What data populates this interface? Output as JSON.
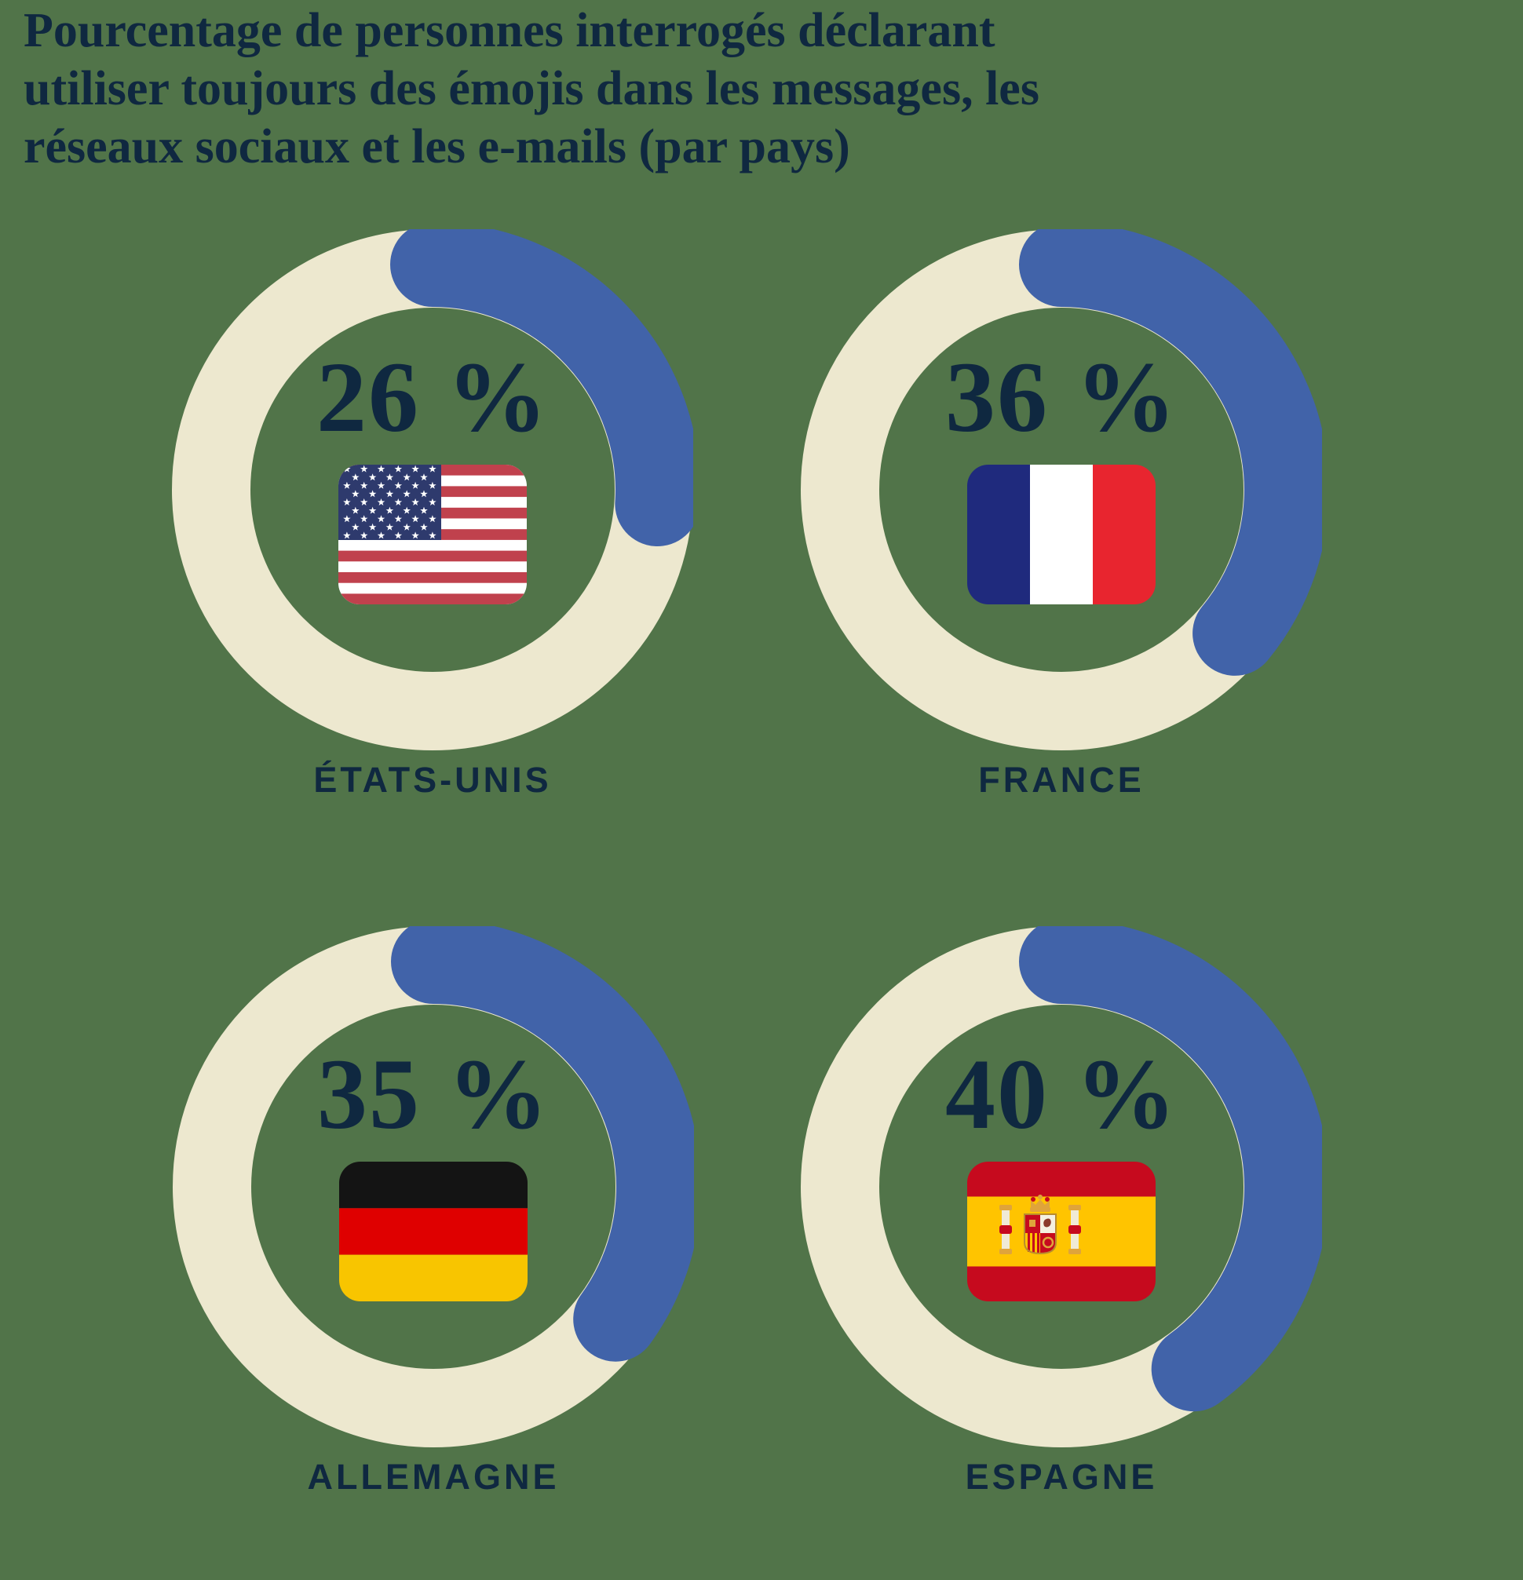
{
  "title": {
    "full": "Pourcentage de personnes interrogés déclarant utiliser toujours des émojis dans les messages, les réseaux sociaux et les e-mails (par pays)",
    "lines": [
      "Pourcentage de personnes interrogés déclarant",
      "utiliser toujours des émojis dans les messages, les",
      "réseaux sociaux et les e-mails (par pays)"
    ]
  },
  "chart_data": {
    "type": "donut-multiples",
    "layout": "2x2-grid",
    "unit": "%",
    "value_range": [
      0,
      100
    ],
    "arc_start": "12-o'clock, clockwise",
    "series": [
      {
        "country": "États-Unis",
        "label": "ÉTATS-UNIS",
        "value": 26,
        "value_label": "26 %",
        "flag": "us-flag"
      },
      {
        "country": "France",
        "label": "FRANCE",
        "value": 36,
        "value_label": "36 %",
        "flag": "france-flag"
      },
      {
        "country": "Allemagne",
        "label": "ALLEMAGNE",
        "value": 35,
        "value_label": "35 %",
        "flag": "germany-flag"
      },
      {
        "country": "Espagne",
        "label": "ESPAGNE",
        "value": 40,
        "value_label": "40 %",
        "flag": "spain-flag"
      }
    ]
  },
  "colors": {
    "background": "#517449",
    "ring": "#EDE8CF",
    "arc": "#4163A9",
    "text": "#0F2840"
  }
}
